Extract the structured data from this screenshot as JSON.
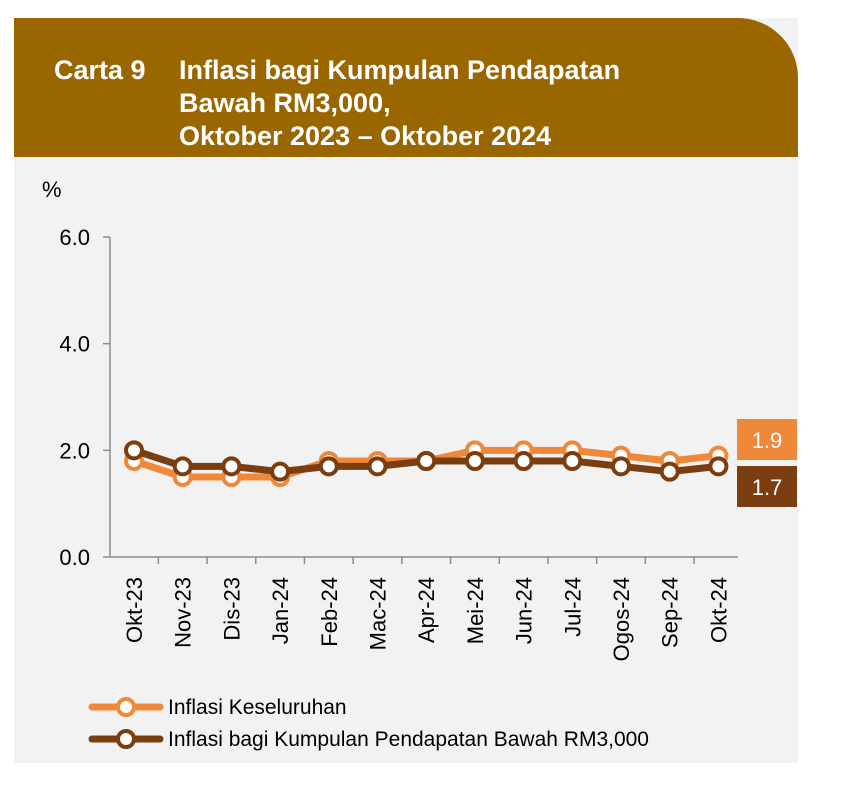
{
  "title": {
    "number": "Carta 9",
    "text": "Inflasi bagi Kumpulan Pendapatan\nBawah RM3,000,\nOktober 2023 – Oktober 2024"
  },
  "chart_data": {
    "type": "line",
    "ylabel": "%",
    "ylim": [
      0,
      6
    ],
    "yticks": [
      "0.0",
      "2.0",
      "4.0",
      "6.0"
    ],
    "categories": [
      "Okt-23",
      "Nov-23",
      "Dis-23",
      "Jan-24",
      "Feb-24",
      "Mac-24",
      "Apr-24",
      "Mei-24",
      "Jun-24",
      "Jul-24",
      "Ogos-24",
      "Sep-24",
      "Okt-24"
    ],
    "series": [
      {
        "name": "Inflasi Keseluruhan",
        "color": "#f0883a",
        "values": [
          1.8,
          1.5,
          1.5,
          1.5,
          1.8,
          1.8,
          1.8,
          2.0,
          2.0,
          2.0,
          1.9,
          1.8,
          1.9
        ],
        "end_label": "1.9"
      },
      {
        "name": "Inflasi bagi Kumpulan Pendapatan Bawah RM3,000",
        "color": "#7a3e10",
        "values": [
          2.0,
          1.7,
          1.7,
          1.6,
          1.7,
          1.7,
          1.8,
          1.8,
          1.8,
          1.8,
          1.7,
          1.6,
          1.7
        ],
        "end_label": "1.7"
      }
    ],
    "grid": false,
    "legend": "bottom-left"
  }
}
